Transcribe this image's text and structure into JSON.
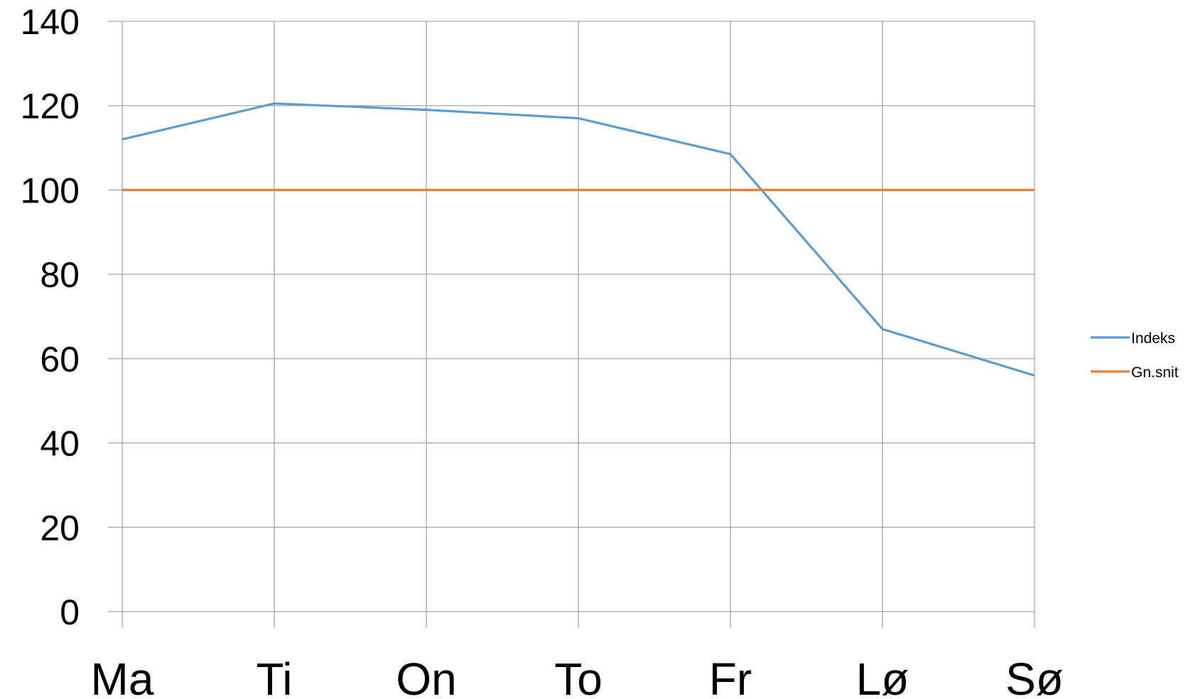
{
  "chart_data": {
    "type": "line",
    "title": "",
    "xlabel": "",
    "ylabel": "",
    "categories": [
      "Ma",
      "Ti",
      "On",
      "To",
      "Fr",
      "Lø",
      "Sø"
    ],
    "ylim": [
      0,
      140
    ],
    "yticks": [
      0,
      20,
      40,
      60,
      80,
      100,
      120,
      140
    ],
    "grid": true,
    "legend_position": "right",
    "series": [
      {
        "name": "Indeks",
        "color": "#5b9bd5",
        "values": [
          112,
          120.5,
          119,
          117,
          108.5,
          67,
          56
        ]
      },
      {
        "name": "Gn.snit",
        "color": "#ed7d31",
        "values": [
          100,
          100,
          100,
          100,
          100,
          100,
          100
        ]
      }
    ]
  }
}
